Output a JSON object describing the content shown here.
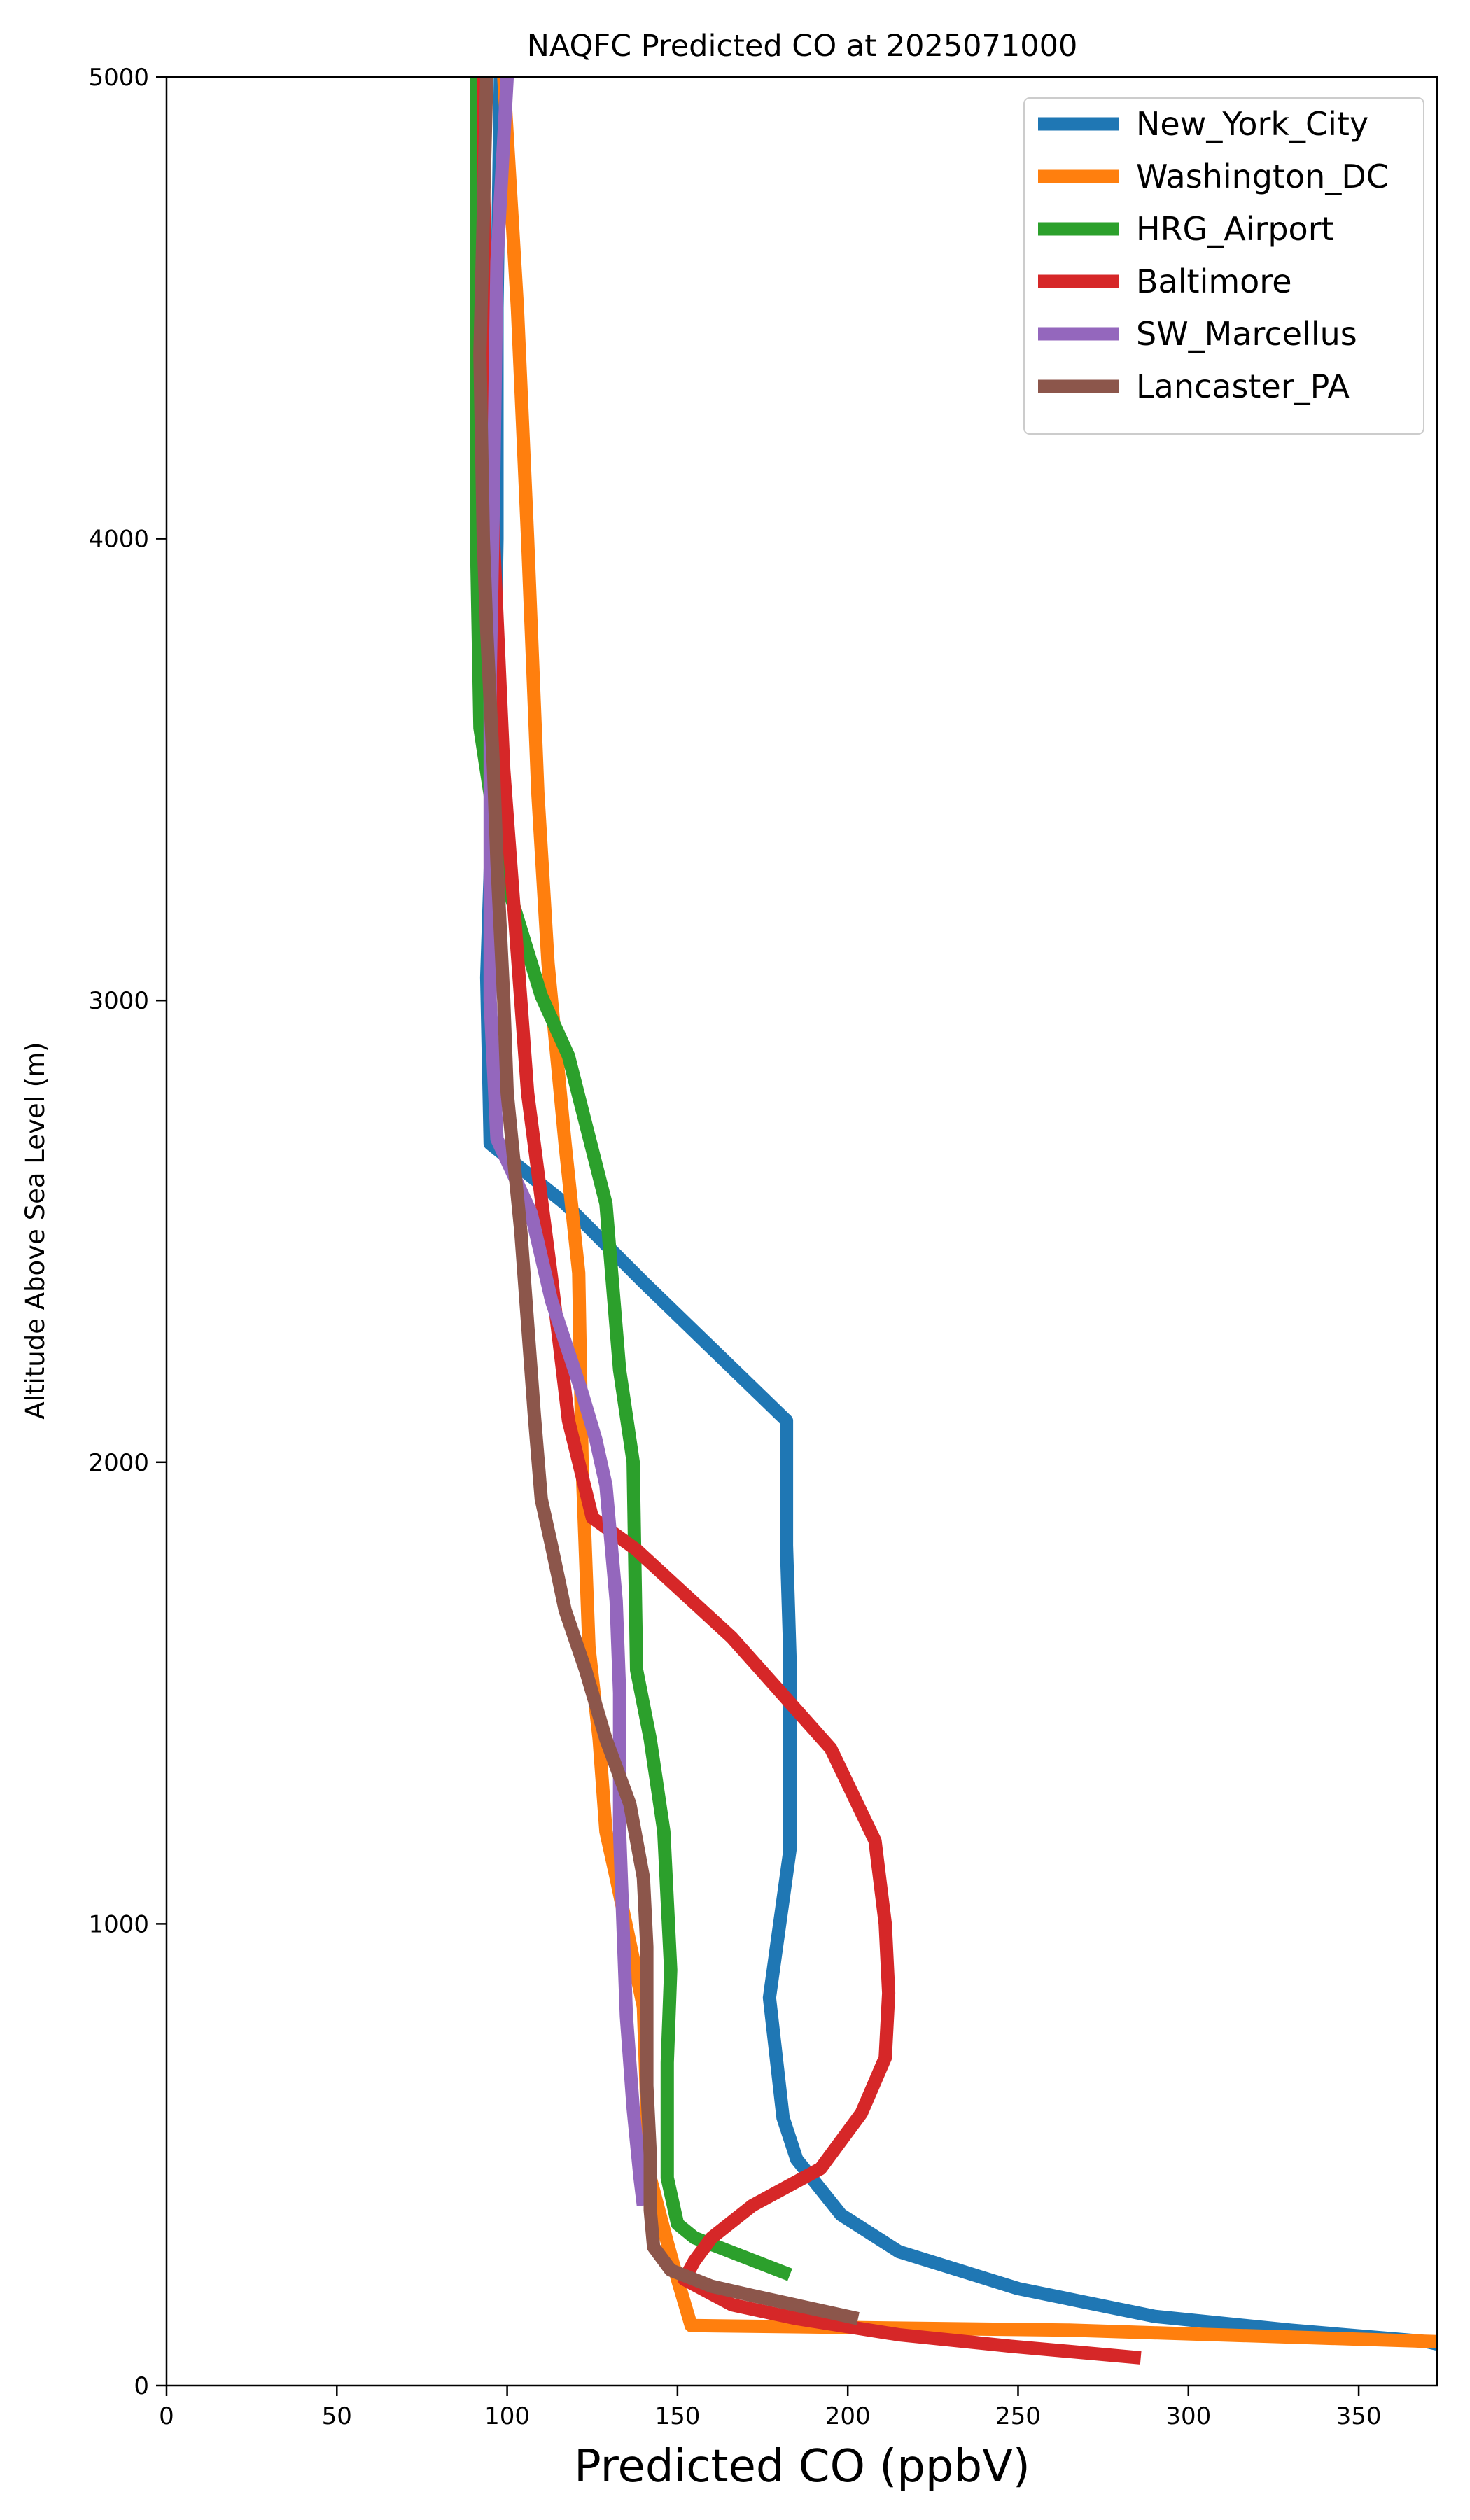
{
  "chart_data": {
    "type": "line",
    "title": "NAQFC Predicted CO at 2025071000",
    "xlabel": "Predicted CO (ppbV)",
    "ylabel": "Altitude Above Sea Level (m)",
    "xlim": [
      0,
      373
    ],
    "ylim": [
      0,
      5000
    ],
    "x_ticks": [
      0,
      50,
      100,
      150,
      200,
      250,
      300,
      350
    ],
    "y_ticks": [
      0,
      1000,
      2000,
      3000,
      4000,
      5000
    ],
    "x_tick_labels": [
      "0",
      "50",
      "100",
      "150",
      "200",
      "250",
      "300",
      "350"
    ],
    "y_tick_labels": [
      "0",
      "1000",
      "2000",
      "3000",
      "4000",
      "5000"
    ],
    "grid": false,
    "legend_position": "top-right",
    "series": [
      {
        "name": "New_York_City",
        "color": "#1f77b4",
        "points": [
          [
            373,
            90
          ],
          [
            370,
            95
          ],
          [
            330,
            120
          ],
          [
            290,
            150
          ],
          [
            250,
            210
          ],
          [
            215,
            290
          ],
          [
            198,
            370
          ],
          [
            185,
            490
          ],
          [
            181,
            580
          ],
          [
            179,
            710
          ],
          [
            177,
            840
          ],
          [
            180,
            1000
          ],
          [
            183,
            1160
          ],
          [
            183,
            1380
          ],
          [
            183,
            1580
          ],
          [
            182,
            1820
          ],
          [
            182,
            2090
          ],
          [
            140,
            2390
          ],
          [
            117,
            2560
          ],
          [
            95,
            2690
          ],
          [
            94,
            3050
          ],
          [
            96,
            3500
          ],
          [
            97,
            4000
          ],
          [
            97,
            4500
          ],
          [
            98,
            5000
          ]
        ]
      },
      {
        "name": "Washington_DC",
        "color": "#ff7f0e",
        "points": [
          [
            373,
            95
          ],
          [
            265,
            120
          ],
          [
            154,
            130
          ],
          [
            150,
            230
          ],
          [
            147,
            310
          ],
          [
            142,
            450
          ],
          [
            141,
            600
          ],
          [
            140,
            820
          ],
          [
            132,
            1100
          ],
          [
            129,
            1200
          ],
          [
            127,
            1400
          ],
          [
            124,
            1600
          ],
          [
            122,
            2000
          ],
          [
            121,
            2410
          ],
          [
            117,
            2690
          ],
          [
            112,
            3080
          ],
          [
            109,
            3450
          ],
          [
            106,
            4000
          ],
          [
            103,
            4500
          ],
          [
            99,
            5000
          ]
        ]
      },
      {
        "name": "HRG_Airport",
        "color": "#2ca02c",
        "points": [
          [
            183,
            240
          ],
          [
            155,
            320
          ],
          [
            150,
            350
          ],
          [
            147,
            450
          ],
          [
            147,
            550
          ],
          [
            147,
            700
          ],
          [
            148,
            900
          ],
          [
            146,
            1200
          ],
          [
            142,
            1400
          ],
          [
            138,
            1550
          ],
          [
            137,
            2000
          ],
          [
            133,
            2200
          ],
          [
            129,
            2560
          ],
          [
            118,
            2880
          ],
          [
            110,
            3010
          ],
          [
            98,
            3300
          ],
          [
            92,
            3590
          ],
          [
            91,
            4000
          ],
          [
            91,
            4500
          ],
          [
            91,
            5000
          ]
        ]
      },
      {
        "name": "Baltimore",
        "color": "#d62728",
        "points": [
          [
            286,
            60
          ],
          [
            248,
            85
          ],
          [
            215,
            110
          ],
          [
            185,
            145
          ],
          [
            166,
            175
          ],
          [
            152,
            230
          ],
          [
            155,
            270
          ],
          [
            160,
            320
          ],
          [
            172,
            390
          ],
          [
            192,
            470
          ],
          [
            204,
            590
          ],
          [
            211,
            710
          ],
          [
            212,
            850
          ],
          [
            211,
            1000
          ],
          [
            208,
            1180
          ],
          [
            195,
            1380
          ],
          [
            166,
            1620
          ],
          [
            138,
            1810
          ],
          [
            125,
            1880
          ],
          [
            118,
            2090
          ],
          [
            113,
            2400
          ],
          [
            106,
            2800
          ],
          [
            103,
            3100
          ],
          [
            99,
            3500
          ],
          [
            96,
            4000
          ],
          [
            94,
            4400
          ],
          [
            93,
            4800
          ],
          [
            93,
            5000
          ]
        ]
      },
      {
        "name": "SW_Marcellus",
        "color": "#9467bd",
        "points": [
          [
            140,
            390
          ],
          [
            139,
            450
          ],
          [
            137,
            600
          ],
          [
            135,
            800
          ],
          [
            134,
            1000
          ],
          [
            133,
            1200
          ],
          [
            133,
            1500
          ],
          [
            132,
            1700
          ],
          [
            129,
            1950
          ],
          [
            126,
            2050
          ],
          [
            122,
            2150
          ],
          [
            113,
            2350
          ],
          [
            107,
            2540
          ],
          [
            97,
            2700
          ],
          [
            95,
            3000
          ],
          [
            95,
            3300
          ],
          [
            95,
            3700
          ],
          [
            96,
            4100
          ],
          [
            97,
            4600
          ],
          [
            100,
            5000
          ]
        ]
      },
      {
        "name": "Lancaster_PA",
        "color": "#8c564b",
        "points": [
          [
            203,
            145
          ],
          [
            172,
            195
          ],
          [
            160,
            215
          ],
          [
            148,
            250
          ],
          [
            143,
            300
          ],
          [
            142,
            380
          ],
          [
            142,
            500
          ],
          [
            141,
            650
          ],
          [
            141,
            800
          ],
          [
            141,
            950
          ],
          [
            140,
            1100
          ],
          [
            136,
            1260
          ],
          [
            129,
            1400
          ],
          [
            123,
            1550
          ],
          [
            117,
            1680
          ],
          [
            113,
            1820
          ],
          [
            110,
            1920
          ],
          [
            108,
            2100
          ],
          [
            106,
            2300
          ],
          [
            104,
            2500
          ],
          [
            102,
            2650
          ],
          [
            100,
            2800
          ],
          [
            99,
            3000
          ],
          [
            97,
            3300
          ],
          [
            96,
            3500
          ],
          [
            94,
            3800
          ],
          [
            93,
            4000
          ],
          [
            92,
            4400
          ],
          [
            93,
            4700
          ],
          [
            94,
            5000
          ]
        ]
      }
    ]
  }
}
